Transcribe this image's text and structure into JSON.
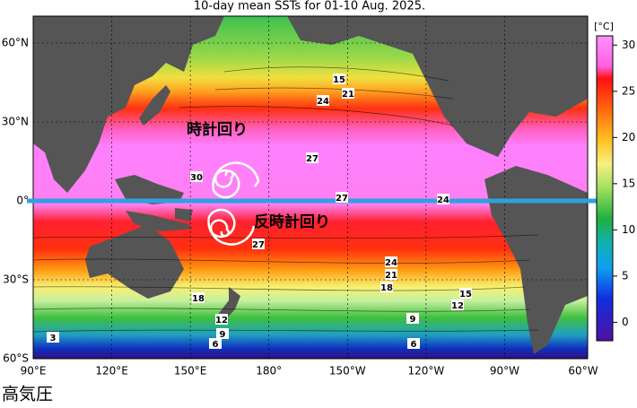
{
  "title": "10-day mean SSTs for 01-10 Aug. 2025.",
  "map": {
    "lat_labels": [
      "60°N",
      "30°N",
      "0°",
      "30°S",
      "60°S"
    ],
    "lon_labels": [
      "90°E",
      "120°E",
      "150°E",
      "180°",
      "150°W",
      "120°W",
      "90°W",
      "60°W"
    ]
  },
  "colorbar": {
    "unit": "[°C]",
    "range": [
      -2,
      31
    ],
    "ticks": [
      30,
      25,
      20,
      15,
      10,
      5,
      0
    ]
  },
  "contour_labels": [
    "15",
    "24",
    "21",
    "27",
    "30",
    "27",
    "24",
    "27",
    "24",
    "21",
    "18",
    "15",
    "12",
    "18",
    "12",
    "9",
    "6",
    "9",
    "6",
    "3"
  ],
  "annotations": {
    "clockwise": "時計回り",
    "counterclockwise": "反時計回り"
  },
  "caption": "高気圧"
}
